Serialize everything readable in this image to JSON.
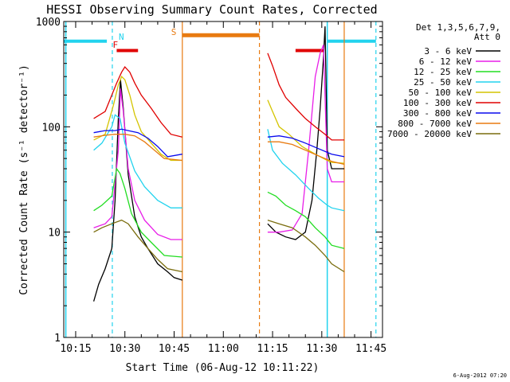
{
  "chart_data": {
    "type": "line",
    "title": "HESSI Observing Summary Count Rates, Corrected",
    "xlabel": "Start Time (06-Aug-12 10:11:22)",
    "ylabel": "Corrected Count Rate (s⁻¹ detector⁻¹)",
    "yscale": "log",
    "xlim": [
      "10:11:22",
      "11:48:30"
    ],
    "ylim": [
      1,
      1000
    ],
    "xticks": [
      "10:15",
      "10:30",
      "10:45",
      "11:00",
      "11:15",
      "11:30",
      "11:45"
    ],
    "yticks": [
      "1",
      "10",
      "100",
      "1000"
    ],
    "legend_header": [
      "Det 1,3,5,6,7,9,",
      "Att 0"
    ],
    "legend_position": "right",
    "footer": "6-Aug-2012 07:20",
    "annotations": [
      {
        "label": "N",
        "color": "#22d3ee"
      },
      {
        "label": "F",
        "color": "#e00000"
      },
      {
        "label": "S",
        "color": "#e87a10"
      }
    ],
    "flags": {
      "night": {
        "color": "#22d3ee",
        "spans": [
          [
            "10:11:22",
            "10:24:30"
          ],
          [
            "11:31:40",
            "11:46:30"
          ]
        ],
        "level": 650
      },
      "flare": {
        "color": "#e00000",
        "spans": [
          [
            "10:27:30",
            "10:34:00"
          ],
          [
            "11:22:00",
            "11:30:30"
          ]
        ],
        "level": 530
      },
      "saa": {
        "color": "#e87a10",
        "spans": [
          [
            "10:47:30",
            "11:11:00"
          ]
        ],
        "level": 740
      }
    },
    "markers": {
      "night_dashed": [
        "10:26:10",
        "11:46:30"
      ],
      "night_solid": [
        "10:12:00",
        "11:31:40"
      ],
      "saa_dashed": [
        "11:11:00"
      ],
      "saa_solid": [
        "10:47:30",
        "11:36:50"
      ]
    },
    "segments": [
      [
        "10:20:30",
        "10:47:30"
      ],
      [
        "11:13:30",
        "11:36:50"
      ]
    ],
    "series": [
      {
        "name": "3 - 6 keV",
        "color": "#000000",
        "points": [
          [
            "10:20:30",
            2.2
          ],
          [
            "10:22:00",
            3.2
          ],
          [
            "10:24:00",
            4.5
          ],
          [
            "10:26:00",
            7
          ],
          [
            "10:27:00",
            20
          ],
          [
            "10:28:00",
            120
          ],
          [
            "10:28:40",
            280
          ],
          [
            "10:29:30",
            150
          ],
          [
            "10:31:00",
            35
          ],
          [
            "10:33:00",
            14
          ],
          [
            "10:35:00",
            9
          ],
          [
            "10:37:00",
            7
          ],
          [
            "10:40:00",
            5
          ],
          [
            "10:43:00",
            4.2
          ],
          [
            "10:45:00",
            3.7
          ],
          [
            "10:47:30",
            3.5
          ],
          null,
          [
            "11:13:30",
            12
          ],
          [
            "11:16:00",
            10
          ],
          [
            "11:19:00",
            9
          ],
          [
            "11:22:00",
            8.5
          ],
          [
            "11:25:00",
            10
          ],
          [
            "11:27:00",
            20
          ],
          [
            "11:28:30",
            60
          ],
          [
            "11:29:30",
            150
          ],
          [
            "11:30:30",
            450
          ],
          [
            "11:31:00",
            900
          ],
          [
            "11:31:40",
            60
          ],
          [
            "11:33:00",
            40
          ],
          [
            "11:36:50",
            40
          ]
        ]
      },
      {
        "name": "6 - 12 keV",
        "color": "#e81ee8",
        "points": [
          [
            "10:20:30",
            11
          ],
          [
            "10:24:00",
            12
          ],
          [
            "10:26:00",
            14
          ],
          [
            "10:28:00",
            60
          ],
          [
            "10:28:40",
            230
          ],
          [
            "10:29:30",
            140
          ],
          [
            "10:31:00",
            40
          ],
          [
            "10:33:00",
            20
          ],
          [
            "10:36:00",
            13
          ],
          [
            "10:40:00",
            9.5
          ],
          [
            "10:44:00",
            8.5
          ],
          [
            "10:47:30",
            8.5
          ],
          null,
          [
            "11:13:30",
            10
          ],
          [
            "11:17:00",
            10
          ],
          [
            "11:21:00",
            10.5
          ],
          [
            "11:24:00",
            15
          ],
          [
            "11:26:00",
            60
          ],
          [
            "11:28:00",
            300
          ],
          [
            "11:29:30",
            500
          ],
          [
            "11:30:30",
            600
          ],
          [
            "11:31:40",
            40
          ],
          [
            "11:33:00",
            30
          ],
          [
            "11:36:50",
            30
          ]
        ]
      },
      {
        "name": "12 - 25 keV",
        "color": "#22dd22",
        "points": [
          [
            "10:20:30",
            16
          ],
          [
            "10:23:00",
            18
          ],
          [
            "10:26:00",
            22
          ],
          [
            "10:27:30",
            40
          ],
          [
            "10:28:30",
            36
          ],
          [
            "10:30:00",
            26
          ],
          [
            "10:32:00",
            15
          ],
          [
            "10:35:00",
            10
          ],
          [
            "10:38:00",
            8
          ],
          [
            "10:42:00",
            6
          ],
          [
            "10:47:30",
            5.8
          ],
          null,
          [
            "11:13:30",
            24
          ],
          [
            "11:16:00",
            22
          ],
          [
            "11:19:00",
            18
          ],
          [
            "11:22:00",
            16
          ],
          [
            "11:25:00",
            14
          ],
          [
            "11:28:00",
            11
          ],
          [
            "11:31:00",
            9
          ],
          [
            "11:33:00",
            7.5
          ],
          [
            "11:36:50",
            7
          ]
        ]
      },
      {
        "name": "25 - 50 keV",
        "color": "#22d3ee",
        "points": [
          [
            "10:20:30",
            60
          ],
          [
            "10:23:00",
            70
          ],
          [
            "10:26:00",
            100
          ],
          [
            "10:27:00",
            130
          ],
          [
            "10:28:30",
            120
          ],
          [
            "10:30:00",
            70
          ],
          [
            "10:33:00",
            38
          ],
          [
            "10:36:00",
            27
          ],
          [
            "10:40:00",
            20
          ],
          [
            "10:44:00",
            17
          ],
          [
            "10:47:30",
            17
          ],
          null,
          [
            "11:13:30",
            95
          ],
          [
            "11:15:00",
            60
          ],
          [
            "11:18:00",
            45
          ],
          [
            "11:22:00",
            35
          ],
          [
            "11:26:00",
            26
          ],
          [
            "11:29:00",
            21
          ],
          [
            "11:31:40",
            18
          ],
          [
            "11:33:00",
            17
          ],
          [
            "11:36:50",
            16
          ]
        ]
      },
      {
        "name": "50 - 100 keV",
        "color": "#d4c400",
        "points": [
          [
            "10:20:30",
            75
          ],
          [
            "10:24:00",
            85
          ],
          [
            "10:26:30",
            160
          ],
          [
            "10:28:00",
            250
          ],
          [
            "10:29:00",
            300
          ],
          [
            "10:30:00",
            280
          ],
          [
            "10:31:30",
            200
          ],
          [
            "10:33:00",
            130
          ],
          [
            "10:35:00",
            90
          ],
          [
            "10:38:00",
            70
          ],
          [
            "10:41:00",
            55
          ],
          [
            "10:44:00",
            48
          ],
          [
            "10:47:30",
            48
          ],
          null,
          [
            "11:13:30",
            180
          ],
          [
            "11:15:00",
            140
          ],
          [
            "11:17:00",
            100
          ],
          [
            "11:20:00",
            85
          ],
          [
            "11:24:00",
            65
          ],
          [
            "11:28:00",
            55
          ],
          [
            "11:31:40",
            48
          ],
          [
            "11:33:00",
            46
          ],
          [
            "11:36:50",
            45
          ]
        ]
      },
      {
        "name": "100 - 300 keV",
        "color": "#e00000",
        "points": [
          [
            "10:20:30",
            120
          ],
          [
            "10:24:00",
            140
          ],
          [
            "10:26:00",
            200
          ],
          [
            "10:27:30",
            260
          ],
          [
            "10:29:00",
            330
          ],
          [
            "10:30:00",
            370
          ],
          [
            "10:31:30",
            330
          ],
          [
            "10:33:00",
            260
          ],
          [
            "10:35:00",
            200
          ],
          [
            "10:38:00",
            150
          ],
          [
            "10:41:00",
            110
          ],
          [
            "10:44:00",
            85
          ],
          [
            "10:47:30",
            80
          ],
          null,
          [
            "11:13:30",
            500
          ],
          [
            "11:15:00",
            380
          ],
          [
            "11:17:00",
            250
          ],
          [
            "11:19:00",
            190
          ],
          [
            "11:22:00",
            150
          ],
          [
            "11:25:00",
            120
          ],
          [
            "11:28:00",
            100
          ],
          [
            "11:31:00",
            85
          ],
          [
            "11:33:00",
            75
          ],
          [
            "11:36:50",
            75
          ]
        ]
      },
      {
        "name": "300 - 800 keV",
        "color": "#0a0aee",
        "points": [
          [
            "10:20:30",
            88
          ],
          [
            "10:24:00",
            92
          ],
          [
            "10:27:00",
            92
          ],
          [
            "10:29:00",
            95
          ],
          [
            "10:31:00",
            92
          ],
          [
            "10:34:00",
            88
          ],
          [
            "10:37:00",
            78
          ],
          [
            "10:40:00",
            65
          ],
          [
            "10:43:00",
            52
          ],
          [
            "10:47:30",
            55
          ],
          null,
          [
            "11:13:30",
            80
          ],
          [
            "11:17:00",
            82
          ],
          [
            "11:21:00",
            78
          ],
          [
            "11:25:00",
            70
          ],
          [
            "11:29:00",
            62
          ],
          [
            "11:33:00",
            55
          ],
          [
            "11:36:50",
            52
          ]
        ]
      },
      {
        "name": "800 - 7000 keV",
        "color": "#e87a10",
        "points": [
          [
            "10:20:30",
            80
          ],
          [
            "10:24:00",
            83
          ],
          [
            "10:27:00",
            85
          ],
          [
            "10:30:00",
            85
          ],
          [
            "10:33:00",
            82
          ],
          [
            "10:36:00",
            72
          ],
          [
            "10:39:00",
            60
          ],
          [
            "10:42:00",
            50
          ],
          [
            "10:47:30",
            48
          ],
          null,
          [
            "11:13:30",
            72
          ],
          [
            "11:17:00",
            72
          ],
          [
            "11:21:00",
            68
          ],
          [
            "11:25:00",
            60
          ],
          [
            "11:29:00",
            53
          ],
          [
            "11:33:00",
            47
          ],
          [
            "11:36:50",
            44
          ]
        ]
      },
      {
        "name": "7000 - 20000 keV",
        "color": "#7a6d0e",
        "points": [
          [
            "10:20:30",
            10
          ],
          [
            "10:23:00",
            11
          ],
          [
            "10:26:00",
            12
          ],
          [
            "10:29:00",
            13
          ],
          [
            "10:31:00",
            12
          ],
          [
            "10:34:00",
            9
          ],
          [
            "10:37:00",
            7
          ],
          [
            "10:40:00",
            5.5
          ],
          [
            "10:43:00",
            4.5
          ],
          [
            "10:47:30",
            4.2
          ],
          null,
          [
            "11:13:30",
            13
          ],
          [
            "11:17:00",
            12
          ],
          [
            "11:21:00",
            11
          ],
          [
            "11:25:00",
            9
          ],
          [
            "11:28:00",
            7.5
          ],
          [
            "11:31:00",
            6
          ],
          [
            "11:33:00",
            5
          ],
          [
            "11:36:50",
            4.2
          ]
        ]
      }
    ]
  }
}
